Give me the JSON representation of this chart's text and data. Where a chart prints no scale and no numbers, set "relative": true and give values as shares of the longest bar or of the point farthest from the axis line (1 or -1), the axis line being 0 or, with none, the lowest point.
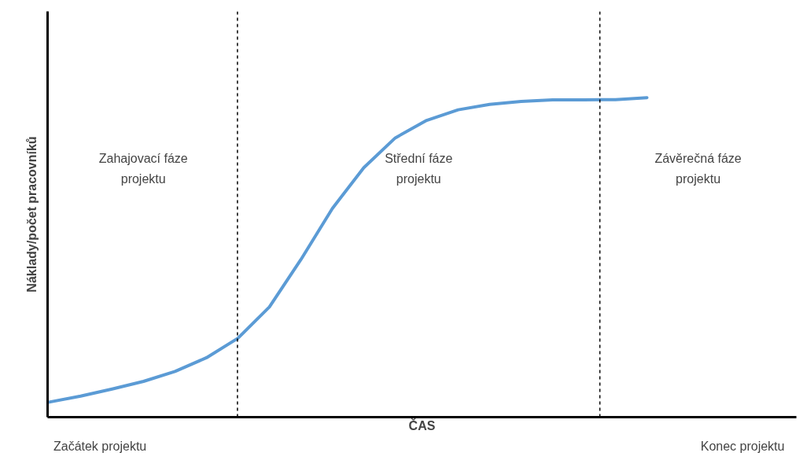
{
  "chart_data": {
    "type": "line",
    "relative": true,
    "xlabel": "ČAS",
    "ylabel": "Náklady/počet pracovníků",
    "categories": [
      null,
      null,
      null,
      null,
      null,
      null,
      null,
      null,
      null,
      null,
      null,
      null,
      null,
      null,
      null,
      null,
      null,
      null,
      null,
      null
    ],
    "series": [
      {
        "color": "#5b9bd5",
        "values": [
          0.047,
          0.066,
          0.088,
          0.112,
          0.143,
          0.186,
          0.247,
          0.345,
          0.493,
          0.653,
          0.781,
          0.874,
          0.929,
          0.962,
          0.979,
          0.988,
          0.993,
          0.993,
          0.994,
          1.0
        ]
      }
    ],
    "annotations": [
      "Zahajovací fáze\nprojektu",
      "Střední fáze\nprojektu",
      "Závěrečná fáze\nprojektu",
      "Začátek projektu",
      "Konec projektu"
    ],
    "marker": "none",
    "line_style": "solid"
  }
}
